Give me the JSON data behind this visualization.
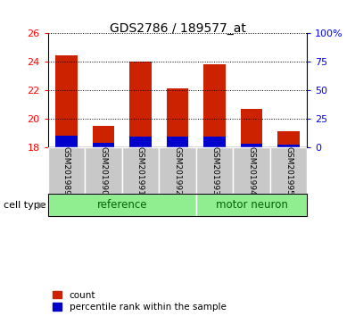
{
  "title": "GDS2786 / 189577_at",
  "samples": [
    "GSM201989",
    "GSM201990",
    "GSM201991",
    "GSM201992",
    "GSM201993",
    "GSM201994",
    "GSM201995"
  ],
  "count_values": [
    24.42,
    19.5,
    24.0,
    22.1,
    23.85,
    20.7,
    19.1
  ],
  "percentile_values": [
    0.82,
    0.32,
    0.72,
    0.72,
    0.76,
    0.22,
    0.16
  ],
  "base_value": 18.0,
  "ylim": [
    18,
    26
  ],
  "yticks": [
    18,
    20,
    22,
    24,
    26
  ],
  "right_ylim": [
    0,
    100
  ],
  "right_yticks": [
    0,
    25,
    50,
    75,
    100
  ],
  "right_yticklabels": [
    "0",
    "25",
    "50",
    "75",
    "100%"
  ],
  "groups": [
    {
      "label": "reference",
      "span": [
        0,
        4
      ],
      "color": "#90EE90"
    },
    {
      "label": "motor neuron",
      "span": [
        4,
        7
      ],
      "color": "#7CFC00"
    }
  ],
  "bar_color_red": "#CC2200",
  "bar_color_blue": "#0000CC",
  "bar_width": 0.6,
  "tick_bg_color": "#C8C8C8",
  "grid_color": "black",
  "legend_items": [
    {
      "label": "count",
      "color": "#CC2200"
    },
    {
      "label": "percentile rank within the sample",
      "color": "#0000CC"
    }
  ],
  "group_label_color": "#006600",
  "cell_type_label": "cell type",
  "figsize": [
    3.98,
    3.54
  ],
  "dpi": 100
}
